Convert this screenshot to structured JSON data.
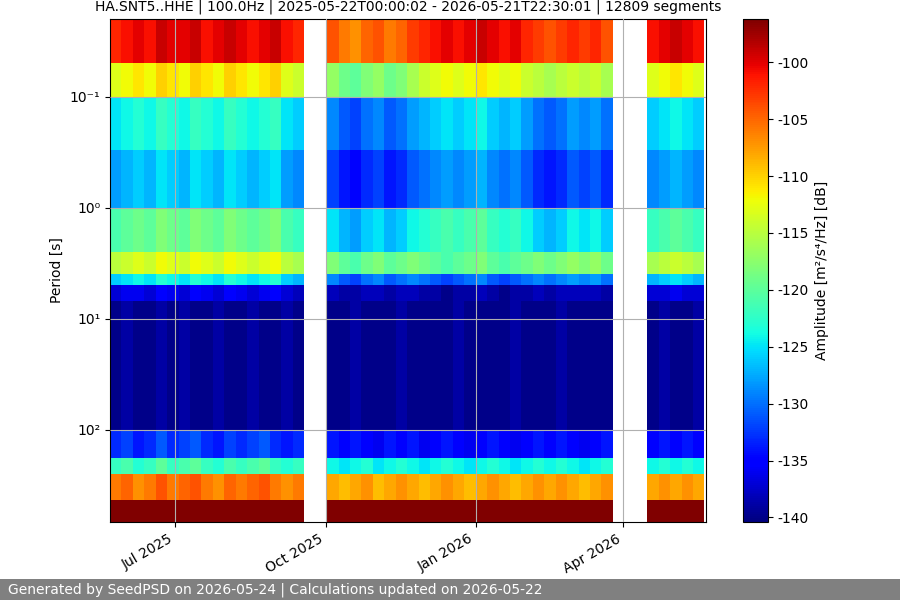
{
  "chart_data": {
    "type": "heatmap",
    "title": "HA.SNT5..HHE | 100.0Hz | 2025-05-22T00:00:02 - 2026-05-21T22:30:01 | 12809 segments",
    "y_label": "Period [s]",
    "colorbar_label": "Amplitude [m²/s⁴/Hz] [dB]",
    "footer": "Generated by SeedPSD on 2026-05-24 | Calculations updated on 2026-05-22",
    "color": "jet",
    "log": "y",
    "grid": true,
    "xlim": [
      "2025-05-22",
      "2026-05-22"
    ],
    "xticks": [
      {
        "value": "2025-07-01",
        "label": "Jul 2025"
      },
      {
        "value": "2025-10-01",
        "label": "Oct 2025"
      },
      {
        "value": "2026-01-01",
        "label": "Jan 2026"
      },
      {
        "value": "2026-04-01",
        "label": "Apr 2026"
      }
    ],
    "ylim": [
      680,
      0.02
    ],
    "yticks": [
      {
        "value": 0.1,
        "label": "10⁻¹"
      },
      {
        "value": 1,
        "label": "10⁰"
      },
      {
        "value": 10,
        "label": "10¹"
      },
      {
        "value": 100,
        "label": "10²"
      }
    ],
    "colorbar_lim": [
      -140.4,
      -96.2
    ],
    "colorbar_ticks": [
      -140,
      -135,
      -130,
      -125,
      -120,
      -115,
      -110,
      -105,
      -100
    ],
    "x_edges": [
      "2025-05-22",
      "2025-05-29",
      "2025-06-05",
      "2025-06-12",
      "2025-06-19",
      "2025-06-26",
      "2025-07-03",
      "2025-07-10",
      "2025-07-17",
      "2025-07-24",
      "2025-07-31",
      "2025-08-07",
      "2025-08-14",
      "2025-08-21",
      "2025-08-28",
      "2025-09-04",
      "2025-09-11",
      "2025-09-18",
      "2025-09-25",
      "2025-10-02",
      "2025-10-09",
      "2025-10-16",
      "2025-10-23",
      "2025-10-30",
      "2025-11-06",
      "2025-11-13",
      "2025-11-20",
      "2025-11-27",
      "2025-12-04",
      "2025-12-11",
      "2025-12-18",
      "2025-12-25",
      "2026-01-01",
      "2026-01-08",
      "2026-01-15",
      "2026-01-22",
      "2026-01-29",
      "2026-02-05",
      "2026-02-12",
      "2026-02-19",
      "2026-02-26",
      "2026-03-05",
      "2026-03-12",
      "2026-03-19",
      "2026-03-26",
      "2026-04-02",
      "2026-04-09",
      "2026-04-16",
      "2026-04-23",
      "2026-04-30",
      "2026-05-07",
      "2026-05-14",
      "2026-05-21"
    ],
    "y_edges": [
      0.02,
      0.05,
      0.1,
      0.3,
      1,
      2.5,
      4,
      5,
      7,
      100,
      180,
      250,
      430,
      680
    ],
    "cells": [
      [
        -102,
        -101,
        -100,
        -101,
        -99,
        -100,
        -100,
        -99,
        -101,
        -100,
        -99,
        -100,
        -101,
        -100,
        -99,
        -101,
        -102,
        null,
        null,
        -104,
        -106,
        -107,
        -105,
        -104,
        -106,
        -105,
        -103,
        -102,
        -101,
        -100,
        -101,
        -100,
        -99,
        -100,
        -101,
        -100,
        -102,
        -103,
        -104,
        -103,
        -102,
        -103,
        -102,
        -104,
        null,
        null,
        null,
        -101,
        -100,
        -99,
        -100,
        -101
      ],
      [
        -113,
        -112,
        -111,
        -112,
        -110,
        -111,
        -112,
        -110,
        -111,
        -112,
        -110,
        -111,
        -112,
        -111,
        -110,
        -113,
        -114,
        null,
        null,
        -117,
        -119,
        -120,
        -118,
        -117,
        -119,
        -118,
        -116,
        -114,
        -113,
        -112,
        -113,
        -112,
        -111,
        -112,
        -113,
        -112,
        -114,
        -115,
        -116,
        -115,
        -114,
        -115,
        -114,
        -116,
        null,
        null,
        null,
        -113,
        -112,
        -111,
        -112,
        -113
      ],
      [
        -125,
        -124,
        -123,
        -124,
        -122,
        -123,
        -124,
        -122,
        -123,
        -124,
        -122,
        -123,
        -124,
        -123,
        -122,
        -125,
        -126,
        null,
        null,
        -129,
        -131,
        -132,
        -130,
        -129,
        -131,
        -130,
        -128,
        -127,
        -126,
        -125,
        -126,
        -125,
        -124,
        -126,
        -127,
        -126,
        -128,
        -130,
        -131,
        -130,
        -128,
        -129,
        -128,
        -130,
        null,
        null,
        null,
        -126,
        -125,
        -124,
        -125,
        -126
      ],
      [
        -128,
        -127,
        -126,
        -127,
        -125,
        -126,
        -127,
        -125,
        -126,
        -127,
        -125,
        -126,
        -127,
        -126,
        -125,
        -128,
        -129,
        null,
        null,
        -132,
        -134,
        -135,
        -133,
        -132,
        -134,
        -133,
        -131,
        -130,
        -129,
        -128,
        -129,
        -128,
        -127,
        -129,
        -130,
        -129,
        -131,
        -133,
        -134,
        -133,
        -131,
        -132,
        -131,
        -133,
        null,
        null,
        null,
        -129,
        -128,
        -127,
        -128,
        -129
      ],
      [
        -121,
        -120,
        -119,
        -120,
        -118,
        -119,
        -120,
        -118,
        -119,
        -120,
        -118,
        -119,
        -120,
        -119,
        -118,
        -121,
        -122,
        null,
        null,
        -125,
        -127,
        -128,
        -126,
        -125,
        -127,
        -126,
        -124,
        -123,
        -122,
        -121,
        -122,
        -121,
        -120,
        -122,
        -123,
        -122,
        -124,
        -126,
        -127,
        -126,
        -124,
        -125,
        -124,
        -126,
        null,
        null,
        null,
        -122,
        -121,
        -120,
        -121,
        -122
      ],
      [
        -115,
        -114,
        -113,
        -114,
        -112,
        -113,
        -114,
        -112,
        -113,
        -114,
        -112,
        -113,
        -114,
        -113,
        -112,
        -115,
        -116,
        null,
        null,
        -118,
        -120,
        -121,
        -119,
        -118,
        -120,
        -119,
        -118,
        -119,
        -120,
        -121,
        -120,
        -119,
        -118,
        -120,
        -121,
        -120,
        -119,
        -118,
        -119,
        -118,
        -117,
        -118,
        -117,
        -119,
        null,
        null,
        null,
        -116,
        -115,
        -114,
        -115,
        -116
      ],
      [
        -126,
        -125,
        -124,
        -125,
        -123,
        -124,
        -125,
        -123,
        -124,
        -125,
        -123,
        -124,
        -125,
        -124,
        -123,
        -126,
        -127,
        null,
        null,
        -129,
        -131,
        -132,
        -130,
        -129,
        -131,
        -130,
        -129,
        -130,
        -131,
        -132,
        -131,
        -130,
        -129,
        -131,
        -132,
        -131,
        -130,
        -129,
        -130,
        -129,
        -128,
        -129,
        -128,
        -130,
        null,
        null,
        null,
        -127,
        -126,
        -125,
        -126,
        -127
      ],
      [
        -137,
        -136,
        -136,
        -137,
        -135,
        -136,
        -137,
        -135,
        -136,
        -137,
        -135,
        -136,
        -137,
        -136,
        -135,
        -137,
        -138,
        null,
        null,
        -138,
        -139,
        -139,
        -138,
        -138,
        -139,
        -138,
        -138,
        -139,
        -139,
        -140,
        -139,
        -139,
        -138,
        -139,
        -140,
        -139,
        -139,
        -138,
        -139,
        -138,
        -138,
        -138,
        -138,
        -139,
        null,
        null,
        null,
        -137,
        -137,
        -136,
        -137,
        -137
      ],
      [
        -140,
        -139,
        -140,
        -140,
        -139,
        -140,
        -139,
        -140,
        -140,
        -139,
        -140,
        -140,
        -139,
        -140,
        -140,
        -139,
        -140,
        null,
        null,
        -140,
        -140,
        -139,
        -140,
        -140,
        -140,
        -139,
        -140,
        -140,
        -140,
        -140,
        -139,
        -140,
        -140,
        -140,
        -140,
        -139,
        -140,
        -140,
        -140,
        -139,
        -140,
        -140,
        -140,
        -140,
        null,
        null,
        null,
        -140,
        -139,
        -140,
        -140,
        -139
      ],
      [
        -133,
        -132,
        -134,
        -133,
        -131,
        -133,
        -132,
        -131,
        -133,
        -134,
        -132,
        -133,
        -132,
        -131,
        -133,
        -134,
        -133,
        null,
        null,
        -134,
        -135,
        -134,
        -135,
        -136,
        -134,
        -135,
        -134,
        -136,
        -135,
        -134,
        -135,
        -136,
        -135,
        -134,
        -135,
        -136,
        -135,
        -134,
        -135,
        -134,
        -135,
        -136,
        -135,
        -134,
        null,
        null,
        null,
        -135,
        -134,
        -135,
        -134,
        -135
      ],
      [
        -122,
        -121,
        -123,
        -122,
        -120,
        -122,
        -121,
        -120,
        -122,
        -123,
        -121,
        -122,
        -121,
        -120,
        -122,
        -123,
        -122,
        null,
        null,
        -124,
        -125,
        -124,
        -123,
        -125,
        -124,
        -123,
        -124,
        -125,
        -124,
        -123,
        -124,
        -125,
        -124,
        -123,
        -124,
        -125,
        -124,
        -123,
        -124,
        -123,
        -124,
        -125,
        -124,
        -123,
        null,
        null,
        null,
        -124,
        -123,
        -124,
        -123,
        -124
      ],
      [
        -106,
        -105,
        -107,
        -106,
        -104,
        -106,
        -105,
        -104,
        -106,
        -107,
        -105,
        -106,
        -105,
        -104,
        -106,
        -107,
        -106,
        null,
        null,
        -108,
        -109,
        -108,
        -107,
        -109,
        -108,
        -107,
        -108,
        -109,
        -108,
        -107,
        -108,
        -109,
        -108,
        -107,
        -108,
        -109,
        -108,
        -107,
        -108,
        -107,
        -108,
        -109,
        -108,
        -107,
        null,
        null,
        null,
        -108,
        -107,
        -108,
        -107,
        -108
      ],
      [
        -96,
        -96,
        -96,
        -96,
        -96,
        -96,
        -96,
        -96,
        -96,
        -96,
        -96,
        -96,
        -96,
        -96,
        -96,
        -96,
        -96,
        null,
        null,
        -96,
        -96,
        -96,
        -96,
        -96,
        -96,
        -96,
        -96,
        -96,
        -96,
        -96,
        -96,
        -96,
        -96,
        -96,
        -96,
        -96,
        -96,
        -96,
        -96,
        -96,
        -96,
        -96,
        -96,
        -96,
        null,
        null,
        null,
        -96,
        -96,
        -96,
        -96,
        -96
      ]
    ]
  }
}
